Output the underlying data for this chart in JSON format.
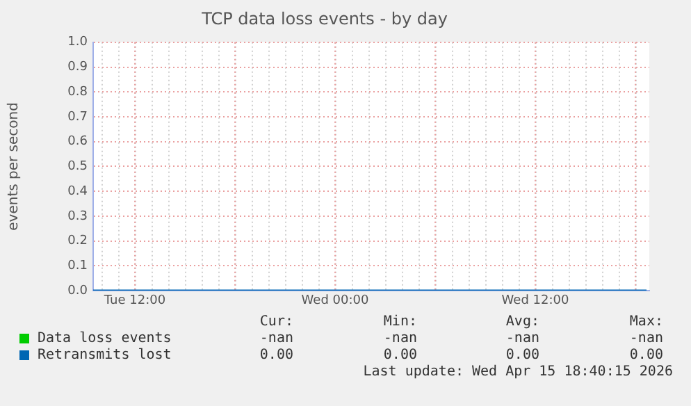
{
  "chart_data": {
    "type": "line",
    "title": "TCP data loss events - by day",
    "ylabel": "events per second",
    "x": [
      "2026-04-14T09:30",
      "2026-04-15T18:40"
    ],
    "xlim": [
      "2026-04-14T09:30",
      "2026-04-15T18:50"
    ],
    "xticks": [
      {
        "value": "2026-04-14T12:00",
        "label": "Tue 12:00"
      },
      {
        "value": "2026-04-14T18:00",
        "label": null
      },
      {
        "value": "2026-04-15T00:00",
        "label": "Wed 00:00"
      },
      {
        "value": "2026-04-15T06:00",
        "label": null
      },
      {
        "value": "2026-04-15T12:00",
        "label": "Wed 12:00"
      },
      {
        "value": "2026-04-15T18:00",
        "label": null
      }
    ],
    "ylim": [
      0,
      1
    ],
    "yticks": [
      {
        "value": 0,
        "label": "0.0"
      },
      {
        "value": 0.1,
        "label": "0.1"
      },
      {
        "value": 0.2,
        "label": "0.2"
      },
      {
        "value": 0.3,
        "label": "0.3"
      },
      {
        "value": 0.4,
        "label": "0.4"
      },
      {
        "value": 0.5,
        "label": "0.5"
      },
      {
        "value": 0.6,
        "label": "0.6"
      },
      {
        "value": 0.7,
        "label": "0.7"
      },
      {
        "value": 0.8,
        "label": "0.8"
      },
      {
        "value": 0.9,
        "label": "0.9"
      },
      {
        "value": 1,
        "label": "1.0"
      }
    ],
    "series": [
      {
        "name": "Data loss events",
        "color": "#00cc00",
        "values": [
          null,
          null
        ]
      },
      {
        "name": "Retransmits lost",
        "color": "#0066b3",
        "values": [
          0,
          0
        ]
      }
    ],
    "annotations": [
      "Cur:",
      "Min:",
      "Avg:",
      "Max:",
      "-nan",
      "-nan",
      "-nan",
      "-nan",
      "0.00",
      "0.00",
      "0.00",
      "0.00",
      "Last update: Wed Apr 15 18:40:15 2026"
    ],
    "grid": true,
    "legend": "bottom",
    "marker": "none",
    "line_style": "solid"
  }
}
